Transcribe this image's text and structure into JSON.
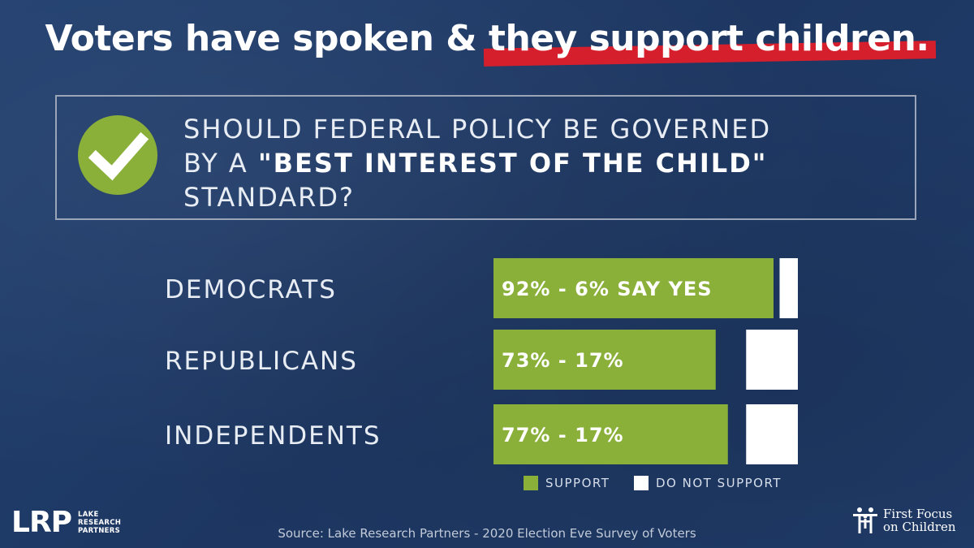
{
  "headline": {
    "part1": "Voters have spoken & ",
    "part2": "they support children."
  },
  "question": {
    "line1": "SHOULD FEDERAL POLICY BE GOVERNED",
    "line2_prefix": "BY A ",
    "line2_strong": "\"BEST INTEREST OF THE CHILD\"",
    "line3": "STANDARD?"
  },
  "colors": {
    "support": "#8ab03a",
    "not_support": "#ffffff",
    "accent_red": "#d61f2c",
    "background": "#1f3a66"
  },
  "chart_data": {
    "type": "bar",
    "orientation": "horizontal",
    "stacked": false,
    "categories": [
      "DEMOCRATS",
      "REPUBLICANS",
      "INDEPENDENTS"
    ],
    "series": [
      {
        "name": "SUPPORT",
        "values": [
          92,
          73,
          77
        ]
      },
      {
        "name": "DO NOT SUPPORT",
        "values": [
          6,
          17,
          17
        ]
      }
    ],
    "data_labels": [
      "92% - 6% SAY YES",
      "73% - 17%",
      "77% - 17%"
    ],
    "legend": [
      "SUPPORT",
      "DO NOT SUPPORT"
    ],
    "legend_position": "bottom-right",
    "xlim": [
      0,
      100
    ]
  },
  "footer": {
    "lrp_mark": "LRP",
    "lrp_line1": "LAKE",
    "lrp_line2": "RESEARCH",
    "lrp_line3": "PARTNERS",
    "source": "Source: Lake Research Partners - 2020 Election Eve Survey of Voters",
    "ffc_line1": "First Focus",
    "ffc_line2": "on Children"
  }
}
